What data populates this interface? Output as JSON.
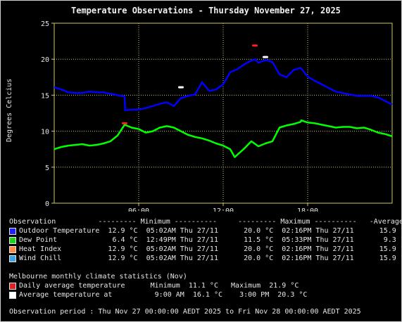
{
  "chart_data": {
    "type": "line",
    "title": "Temperature Observations - Thursday November 27, 2025",
    "ylabel": "Degrees Celcius",
    "xlabel": "",
    "ylim": [
      0,
      25
    ],
    "y_ticks": [
      "0",
      "5",
      "10",
      "15",
      "20",
      "25"
    ],
    "xlim": [
      "00:00",
      "24:00"
    ],
    "x_ticks": [
      {
        "hour": 6,
        "label": "06:00"
      },
      {
        "hour": 12,
        "label": "12:00"
      },
      {
        "hour": 18,
        "label": "18:00"
      }
    ],
    "grid": true,
    "colors": {
      "background": "#000000",
      "grid": "#c8c870",
      "axis": "#c8c870"
    },
    "series": [
      {
        "name": "Outdoor Temperature",
        "color": "#0000ff",
        "x_hours": [
          0,
          0.5,
          1,
          1.5,
          2,
          2.5,
          3,
          3.5,
          4,
          4.5,
          5,
          5.04,
          5.5,
          6,
          6.5,
          7,
          7.5,
          8,
          8.5,
          9,
          9.5,
          10,
          10.5,
          11,
          11.5,
          12,
          12.5,
          13,
          13.5,
          14,
          14.27,
          14.5,
          15,
          15.5,
          16,
          16.5,
          17,
          17.5,
          18,
          18.5,
          19,
          19.5,
          20,
          20.5,
          21,
          21.5,
          22,
          22.5,
          23,
          23.5,
          24
        ],
        "y": [
          16.1,
          15.8,
          15.4,
          15.3,
          15.3,
          15.5,
          15.4,
          15.4,
          15.2,
          15.0,
          14.8,
          12.9,
          13.0,
          13.0,
          13.2,
          13.5,
          13.8,
          14.0,
          13.5,
          14.6,
          14.9,
          15.1,
          16.8,
          15.6,
          15.8,
          16.5,
          18.2,
          18.6,
          19.3,
          19.8,
          20.0,
          19.5,
          19.9,
          19.6,
          17.9,
          17.5,
          18.5,
          18.8,
          17.6,
          17.0,
          16.5,
          16.0,
          15.5,
          15.3,
          15.1,
          14.9,
          14.9,
          14.9,
          14.7,
          14.2,
          13.7
        ]
      },
      {
        "name": "Dew Point",
        "color": "#00ff00",
        "x_hours": [
          0,
          0.5,
          1,
          1.5,
          2,
          2.5,
          3,
          3.5,
          4,
          4.5,
          5,
          5.5,
          6,
          6.5,
          7,
          7.5,
          8,
          8.5,
          9,
          9.5,
          10,
          10.5,
          11,
          11.5,
          12,
          12.5,
          12.82,
          13.5,
          14,
          14.5,
          15,
          15.5,
          16,
          16.5,
          17,
          17.5,
          17.55,
          18,
          18.5,
          19,
          19.5,
          20,
          20.5,
          21,
          21.5,
          22,
          22.5,
          23,
          23.5,
          24
        ],
        "y": [
          7.5,
          7.8,
          8.0,
          8.1,
          8.2,
          8.0,
          8.1,
          8.3,
          8.6,
          9.4,
          10.9,
          10.5,
          10.3,
          9.8,
          10.0,
          10.5,
          10.7,
          10.5,
          10.0,
          9.5,
          9.2,
          9.0,
          8.7,
          8.3,
          8.0,
          7.5,
          6.4,
          7.6,
          8.6,
          7.9,
          8.3,
          8.6,
          10.5,
          10.8,
          11.0,
          11.3,
          11.5,
          11.2,
          11.1,
          10.9,
          10.7,
          10.5,
          10.6,
          10.6,
          10.4,
          10.5,
          10.2,
          9.8,
          9.6,
          9.3
        ]
      }
    ],
    "markers": [
      {
        "name": "Daily average minimum",
        "hour": 5.0,
        "y": 11.1,
        "color": "#ff2020"
      },
      {
        "name": "Daily average maximum",
        "hour": 14.25,
        "y": 21.9,
        "color": "#ff2020"
      },
      {
        "name": "Average minimum temperature",
        "hour": 9.0,
        "y": 16.1,
        "color": "#ffffff"
      },
      {
        "name": "Average maximum temperature",
        "hour": 15.0,
        "y": 20.3,
        "color": "#ffffff"
      }
    ]
  },
  "legend": {
    "header": "Observation          --------- Minimum ----------     --------- Maximum ----------   -Average-",
    "rows": [
      {
        "color": "#2020ff",
        "text": "Outdoor Temperature  12.9 °C  05:02AM Thu 27/11      20.0 °C  02:16PM Thu 27/11      15.9 °C"
      },
      {
        "color": "#20d020",
        "text": "Dew Point             6.4 °C  12:49PM Thu 27/11      11.5 °C  05:33PM Thu 27/11       9.3 °C"
      },
      {
        "color": "#ff8c40",
        "text": "Heat Index           12.9 °C  05:02AM Thu 27/11      20.0 °C  02:16PM Thu 27/11      15.9 °C"
      },
      {
        "color": "#40a0e0",
        "text": "Wind Chill           12.9 °C  05:02AM Thu 27/11      20.0 °C  02:16PM Thu 27/11      15.9 °C"
      }
    ]
  },
  "climate": {
    "header": "Melbourne monthly climate statistics (Nov)",
    "rows": [
      {
        "color": "#e02020",
        "text": "Daily average temperature      Minimum  11.1 °C   Maximum  21.9 °C"
      },
      {
        "color": "#ffffff",
        "text": "Average temperature at          9:00 AM  16.1 °C    3:00 PM  20.3 °C"
      }
    ]
  },
  "period": "Observation period : Thu Nov 27 00:00:00 AEDT 2025 to Fri Nov 28 00:00:00 AEDT 2025"
}
